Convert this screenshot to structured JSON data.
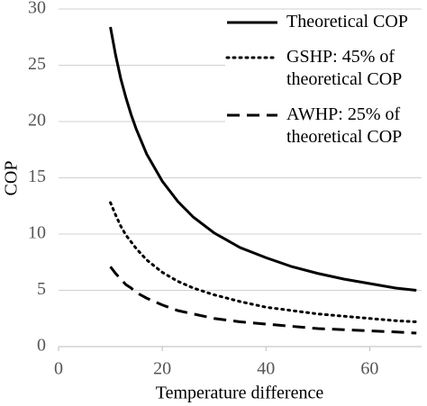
{
  "chart_data": {
    "type": "line",
    "x": [
      10,
      11,
      12,
      13,
      14,
      15,
      17,
      20,
      23,
      26,
      30,
      35,
      40,
      45,
      50,
      55,
      60,
      65,
      69
    ],
    "series": [
      {
        "name": "Theoretical COP",
        "color": "#000000",
        "dash": "solid",
        "values": [
          28.4,
          25.9,
          23.8,
          22.1,
          20.6,
          19.3,
          17.1,
          14.7,
          12.9,
          11.5,
          10.1,
          8.8,
          7.9,
          7.1,
          6.5,
          6.0,
          5.6,
          5.2,
          5.0
        ]
      },
      {
        "name": "GSHP: 45% of theoretical COP",
        "color": "#000000",
        "dash": "dotted",
        "values": [
          12.8,
          11.7,
          10.7,
          9.9,
          9.3,
          8.7,
          7.7,
          6.6,
          5.8,
          5.2,
          4.6,
          4.0,
          3.5,
          3.2,
          2.9,
          2.7,
          2.5,
          2.3,
          2.2
        ]
      },
      {
        "name": "AWHP: 25% of theoretical COP",
        "color": "#000000",
        "dash": "dashed",
        "values": [
          7.1,
          6.5,
          6.0,
          5.5,
          5.2,
          4.8,
          4.3,
          3.7,
          3.2,
          2.9,
          2.5,
          2.2,
          2.0,
          1.8,
          1.6,
          1.5,
          1.4,
          1.3,
          1.2
        ]
      }
    ],
    "xlabel": "Temperature difference",
    "ylabel": "COP",
    "xlim": [
      0,
      70
    ],
    "xticks": [
      0,
      20,
      40,
      60
    ],
    "ylim": [
      0,
      30
    ],
    "yticks": [
      0,
      5,
      10,
      15,
      20,
      25,
      30
    ],
    "grid": true,
    "legend": "upper right"
  }
}
